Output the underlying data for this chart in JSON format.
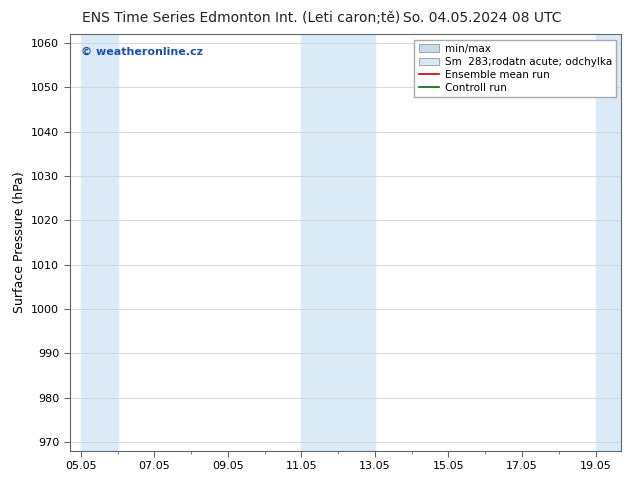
{
  "title": "ENS Time Series Edmonton Int. (Leti caron;tě)",
  "date_label": "So. 04.05.2024 08 UTC",
  "ylabel": "Surface Pressure (hPa)",
  "ylim": [
    968,
    1062
  ],
  "yticks": [
    970,
    980,
    990,
    1000,
    1010,
    1020,
    1030,
    1040,
    1050,
    1060
  ],
  "xtick_labels": [
    "05.05",
    "07.05",
    "09.05",
    "11.05",
    "13.05",
    "15.05",
    "17.05",
    "19.05"
  ],
  "xtick_positions": [
    0,
    2,
    4,
    6,
    8,
    10,
    12,
    14
  ],
  "xlim": [
    -0.3,
    14.7
  ],
  "shaded_ranges": [
    [
      0.0,
      1.0
    ],
    [
      6.0,
      8.0
    ],
    [
      14.0,
      14.7
    ]
  ],
  "shaded_color": "#daeaf7",
  "background_color": "#ffffff",
  "watermark_text": "© weatheronline.cz",
  "watermark_color": "#1a52a8",
  "legend_entries": [
    {
      "label": "min/max",
      "color": "#c8dce8",
      "type": "rect"
    },
    {
      "label": "Sm  283;rodatn acute; odchylka",
      "color": "#d8e8f2",
      "type": "rect"
    },
    {
      "label": "Ensemble mean run",
      "color": "#cc0000",
      "type": "line"
    },
    {
      "label": "Controll run",
      "color": "#006600",
      "type": "line"
    }
  ],
  "title_fontsize": 10,
  "axis_label_fontsize": 9,
  "tick_fontsize": 8,
  "legend_fontsize": 7.5
}
